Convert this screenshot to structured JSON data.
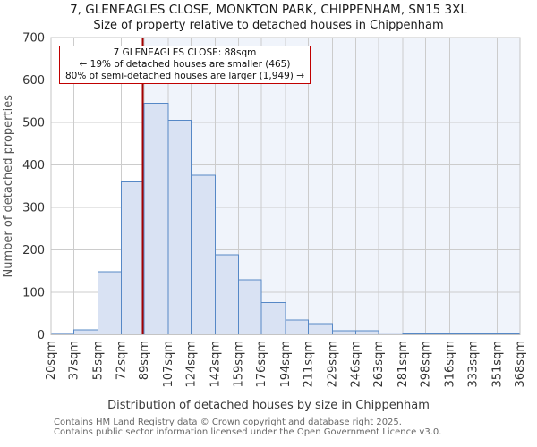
{
  "header": {
    "title": "7, GLENEAGLES CLOSE, MONKTON PARK, CHIPPENHAM, SN15 3XL",
    "subtitle": "Size of property relative to detached houses in Chippenham"
  },
  "annotation": {
    "line1": "7 GLENEAGLES CLOSE: 88sqm",
    "line2": "← 19% of detached houses are smaller (465)",
    "line3": "80% of semi-detached houses are larger (1,949) →"
  },
  "chart_data": {
    "type": "bar",
    "title": "7, GLENEAGLES CLOSE, MONKTON PARK, CHIPPENHAM, SN15 3XL",
    "subtitle": "Size of property relative to detached houses in Chippenham",
    "xlabel": "Distribution of detached houses by size in Chippenham",
    "ylabel": "Number of detached properties",
    "bin_edges_sqm": [
      20,
      37,
      55,
      72,
      89,
      107,
      124,
      142,
      159,
      176,
      194,
      211,
      229,
      246,
      263,
      281,
      298,
      316,
      333,
      351,
      368
    ],
    "categories": [
      "20sqm",
      "37sqm",
      "55sqm",
      "72sqm",
      "89sqm",
      "107sqm",
      "124sqm",
      "142sqm",
      "159sqm",
      "176sqm",
      "194sqm",
      "211sqm",
      "229sqm",
      "246sqm",
      "263sqm",
      "281sqm",
      "298sqm",
      "316sqm",
      "333sqm",
      "351sqm",
      "368sqm"
    ],
    "values": [
      3,
      12,
      148,
      360,
      545,
      505,
      376,
      188,
      130,
      76,
      35,
      26,
      9,
      9,
      4,
      2,
      2,
      2,
      2,
      2
    ],
    "ylim": [
      0,
      700
    ],
    "y_ticks": [
      0,
      100,
      200,
      300,
      400,
      500,
      600,
      700
    ],
    "marker_value_sqm": 88,
    "grid": true,
    "legend": "none"
  },
  "footer": {
    "line1": "Contains HM Land Registry data © Crown copyright and database right 2025.",
    "line2": "Contains public sector information licensed under the Open Government Licence v3.0."
  },
  "colors": {
    "bar_fill": "#d9e2f3",
    "bar_stroke": "#5688c6",
    "marker_line": "#a40000",
    "annotation_border": "#c00000",
    "region_tint": "#f0f4fb",
    "grid": "#cccccc",
    "axis_border": "#c4c4c4",
    "tick_text": "#333333",
    "axis_title_text": "#555555"
  }
}
